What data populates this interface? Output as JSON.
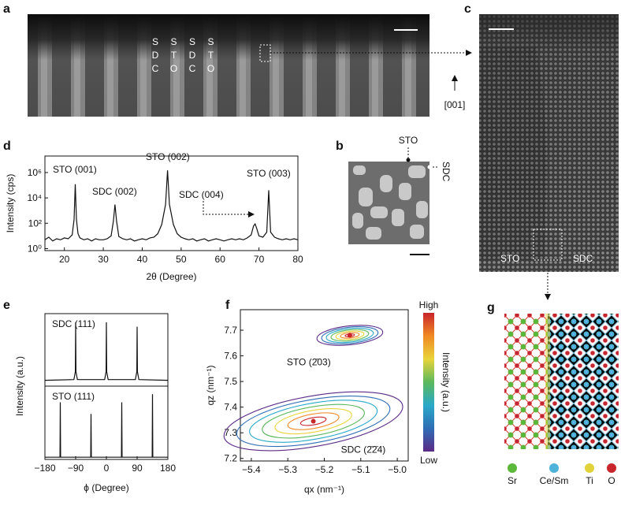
{
  "panel_labels": [
    "a",
    "b",
    "c",
    "d",
    "e",
    "f",
    "g"
  ],
  "panel_a": {
    "columns": [
      [
        "S",
        "D",
        "C"
      ],
      [
        "S",
        "T",
        "O"
      ],
      [
        "S",
        "D",
        "C"
      ],
      [
        "S",
        "T",
        "O"
      ]
    ],
    "direction": "[001]"
  },
  "panel_b": {
    "labels": [
      "STO",
      "SDC"
    ]
  },
  "panel_c": {
    "labels": [
      "STO",
      "SDC"
    ]
  },
  "panel_g": {
    "legend": [
      {
        "name": "Sr",
        "color": "#5cb83a"
      },
      {
        "name": "Ce/Sm",
        "color": "#4fb3d9"
      },
      {
        "name": "Ti",
        "color": "#e2d23a"
      },
      {
        "name": "O",
        "color": "#c8262c"
      }
    ]
  },
  "chart_data": [
    {
      "type": "line",
      "log": true,
      "color": "#111111",
      "x": [
        15,
        16,
        17,
        18,
        19,
        20,
        21,
        22,
        22.5,
        22.8,
        23.1,
        23.5,
        24,
        25,
        26,
        27,
        28,
        29,
        30,
        31,
        32,
        32.6,
        33,
        33.4,
        34,
        35,
        36,
        37,
        38,
        39,
        40,
        41,
        42,
        43,
        44,
        45,
        46,
        46.5,
        47,
        48,
        49,
        50,
        51,
        52,
        53,
        54,
        55,
        56,
        57,
        58,
        59,
        60,
        61,
        62,
        63,
        64,
        65,
        66,
        67,
        68,
        68.6,
        69,
        69.4,
        70,
        71,
        72,
        72.5,
        73,
        74,
        75,
        76,
        77,
        78,
        79,
        80
      ],
      "values": [
        5,
        8,
        4,
        6,
        5,
        7,
        6,
        12,
        200,
        120000,
        200,
        15,
        7,
        5,
        6,
        4,
        6,
        5,
        5,
        6,
        10,
        150,
        3000,
        150,
        9,
        6,
        5,
        6,
        4,
        5,
        6,
        5,
        7,
        8,
        15,
        80,
        3000,
        1500000,
        3000,
        80,
        15,
        8,
        6,
        5,
        6,
        4,
        5,
        6,
        4,
        5,
        6,
        5,
        4,
        5,
        6,
        5,
        6,
        5,
        7,
        12,
        60,
        90,
        40,
        10,
        8,
        20,
        40000,
        20,
        8,
        6,
        5,
        6,
        5,
        6,
        5
      ],
      "xlim": [
        15,
        80
      ],
      "xticks": [
        20,
        30,
        40,
        50,
        60,
        70,
        80
      ],
      "ylim": [
        0.7,
        20000000
      ],
      "yticks": [
        {
          "value": 1,
          "label": "10⁰"
        },
        {
          "value": 100,
          "label": "10²"
        },
        {
          "value": 10000,
          "label": "10⁴"
        },
        {
          "value": 1000000,
          "label": "10⁶"
        }
      ],
      "x_label": "2θ (Degree)",
      "y_label": "Intensity (cps)",
      "annotations": [
        "STO (001)",
        "SDC (002)",
        "STO (002)",
        "SDC (004)",
        "STO (003)"
      ]
    },
    {
      "type": "line",
      "x": [
        -180,
        -95,
        -91,
        -90,
        -89,
        -85,
        -5,
        -1,
        0,
        1,
        5,
        85,
        89,
        90,
        91,
        95,
        180
      ],
      "series": [
        {
          "name": "SDC (111)",
          "color": "#111111",
          "values": [
            0.08,
            0.09,
            0.2,
            0.88,
            0.2,
            0.09,
            0.09,
            0.2,
            0.88,
            0.2,
            0.09,
            0.09,
            0.2,
            0.82,
            0.2,
            0.09,
            0.08
          ]
        }
      ],
      "xlim": [
        -180,
        180
      ],
      "ylim": [
        0,
        1
      ],
      "y_label": "Intensity (a.u.)"
    },
    {
      "type": "line",
      "x": [
        -180,
        -136,
        -135,
        -134,
        -46,
        -45,
        -44,
        44,
        45,
        46,
        134,
        135,
        136,
        180
      ],
      "series": [
        {
          "name": "STO (111)",
          "color": "#111111",
          "values": [
            0.03,
            0.03,
            0.78,
            0.03,
            0.03,
            0.62,
            0.03,
            0.03,
            0.78,
            0.03,
            0.03,
            0.89,
            0.03,
            0.03
          ]
        }
      ],
      "xlim": [
        -180,
        180
      ],
      "ylim": [
        0,
        1
      ],
      "xticks": [
        {
          "value": -180,
          "label": "−180"
        },
        {
          "value": -90,
          "label": "−90"
        },
        0,
        90,
        180
      ],
      "x_label": "ϕ (Degree)"
    },
    {
      "type": "contour",
      "xlim": [
        -5.43,
        -4.97
      ],
      "ylim": [
        7.19,
        7.78
      ],
      "xticks": [
        {
          "value": -5.4,
          "label": "−5.4"
        },
        {
          "value": -5.3,
          "label": "−5.3"
        },
        {
          "value": -5.2,
          "label": "−5.2"
        },
        {
          "value": -5.1,
          "label": "−5.1"
        },
        {
          "value": -5.0,
          "label": "−5.0"
        }
      ],
      "yticks": [
        7.2,
        7.3,
        7.4,
        7.5,
        7.6,
        7.7
      ],
      "x_label": "qx (nm⁻¹)",
      "y_label": "qz (nm⁻¹)",
      "peaks": [
        {
          "name": "STO (2̄03)",
          "qx": -5.13,
          "qz": 7.68
        },
        {
          "name": "SDC (2̄2̄4)",
          "qx": -5.23,
          "qz": 7.345
        }
      ],
      "colormap": [
        "#5b2a86",
        "#2f6db5",
        "#29a9c9",
        "#5cb85c",
        "#e8d43a",
        "#f08a24",
        "#c9252b"
      ],
      "colorbar": {
        "high": "High",
        "low": "Low",
        "label": "Intensity (a.u.)"
      }
    }
  ]
}
